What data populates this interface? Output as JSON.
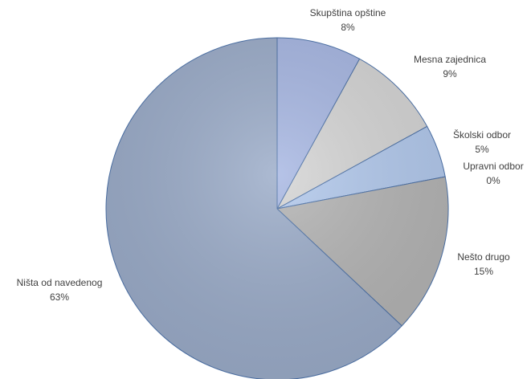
{
  "chart_data": {
    "type": "pie",
    "title": "",
    "start_angle_deg": 0,
    "direction": "clockwise",
    "slices": [
      {
        "label": "Skupština opštine",
        "value": 8,
        "value_label": "8%",
        "color": "#a6b6e2"
      },
      {
        "label": "Mesna zajednica",
        "value": 9,
        "value_label": "9%",
        "color": "#d4d4d4"
      },
      {
        "label": "Školski odbor",
        "value": 5,
        "value_label": "5%",
        "color": "#b1c8ec"
      },
      {
        "label": "Upravni odbor",
        "value": 0,
        "value_label": "0%",
        "color": "#c6c6c6"
      },
      {
        "label": "Nešto drugo",
        "value": 15,
        "value_label": "15%",
        "color": "#b3b3b3"
      },
      {
        "label": "Ništa od navedenog",
        "value": 63,
        "value_label": "63%",
        "color": "#9aabc8"
      }
    ]
  }
}
